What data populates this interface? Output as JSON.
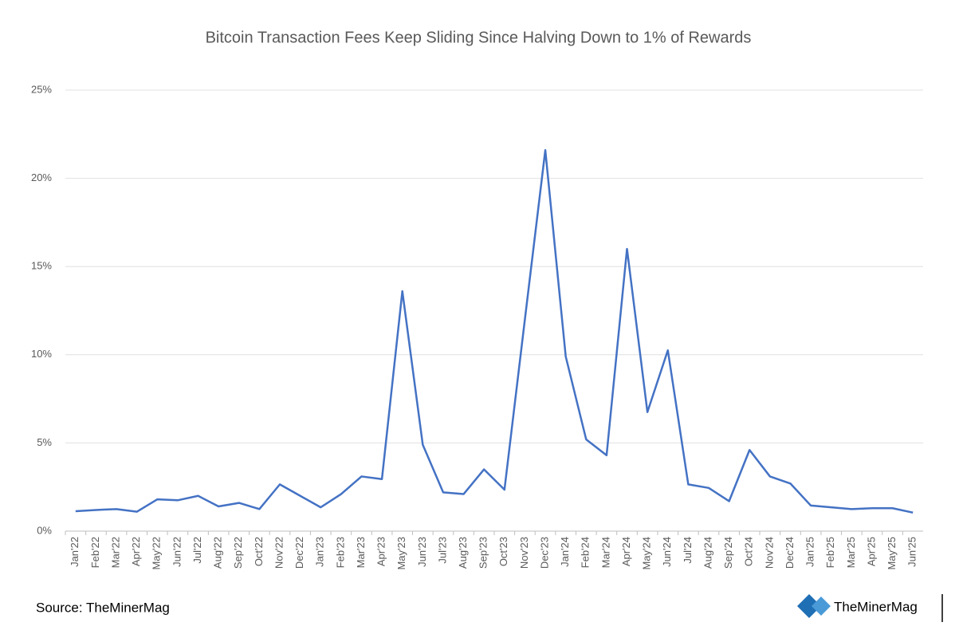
{
  "chart_data": {
    "type": "line",
    "title": "Bitcoin Transaction Fees Keep Sliding Since Halving Down to 1% of Rewards",
    "source": "Source: TheMinerMag",
    "logo_text": "TheMinerMag",
    "categories": [
      "Jan'22",
      "Feb'22",
      "Mar'22",
      "Apr'22",
      "May'22",
      "Jun'22",
      "Jul'22",
      "Aug'22",
      "Sep'22",
      "Oct'22",
      "Nov'22",
      "Dec'22",
      "Jan'23",
      "Feb'23",
      "Mar'23",
      "Apr'23",
      "May'23",
      "Jun'23",
      "Jul'23",
      "Aug'23",
      "Sep'23",
      "Oct'23",
      "Nov'23",
      "Dec'23",
      "Jan'24",
      "Feb'24",
      "Mar'24",
      "Apr'24",
      "May'24",
      "Jun'24",
      "Jul'24",
      "Aug'24",
      "Sep'24",
      "Oct'24",
      "Nov'24",
      "Dec'24",
      "Jan'25",
      "Feb'25",
      "Mar'25",
      "Apr'25",
      "May'25",
      "Jun'25"
    ],
    "series": [
      {
        "name": "Transaction fees share of rewards",
        "color": "#4472c4",
        "values": [
          1.13,
          1.2,
          1.25,
          1.1,
          1.8,
          1.75,
          2.0,
          1.4,
          1.6,
          1.25,
          2.65,
          2.0,
          1.35,
          2.1,
          3.1,
          2.95,
          13.6,
          4.9,
          2.2,
          2.1,
          3.5,
          2.35,
          12.0,
          21.6,
          9.9,
          5.2,
          4.3,
          16.0,
          6.75,
          10.25,
          2.65,
          2.45,
          1.7,
          4.6,
          3.1,
          2.7,
          1.45,
          1.35,
          1.25,
          1.3,
          1.3,
          1.05
        ]
      }
    ],
    "ylim": [
      0,
      25
    ],
    "yticks": [
      {
        "value": 0,
        "label": "0%"
      },
      {
        "value": 5,
        "label": "5%"
      },
      {
        "value": 10,
        "label": "10%"
      },
      {
        "value": 15,
        "label": "15%"
      },
      {
        "value": 20,
        "label": "20%"
      },
      {
        "value": 25,
        "label": "25%"
      }
    ],
    "grid": true
  }
}
